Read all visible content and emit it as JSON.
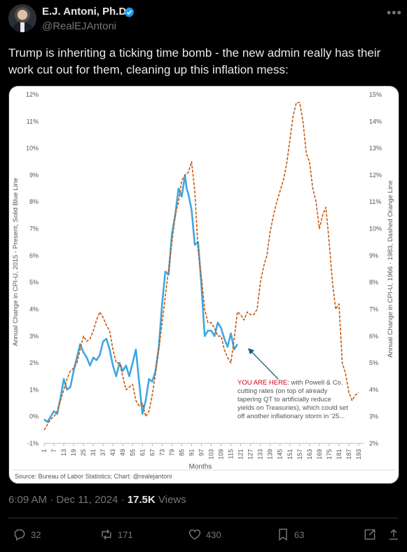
{
  "author": {
    "name": "E.J. Antoni, Ph.D.",
    "handle": "@RealEJAntoni"
  },
  "tweet": {
    "text": "Trump is inheriting a ticking time bomb - the new admin really has their work cut out for them, cleaning up this inflation mess:"
  },
  "meta": {
    "time": "6:09 AM · Dec 11, 2024 · ",
    "views_count": "17.5K",
    "views_label": " Views"
  },
  "actions": {
    "replies": "32",
    "reposts": "171",
    "likes": "430",
    "bookmarks": "63"
  },
  "icons": [
    "verified-badge-icon",
    "more-icon",
    "reply-icon",
    "repost-icon",
    "like-icon",
    "bookmark-icon",
    "share-icon"
  ],
  "chart_data": {
    "type": "line",
    "xlabel": "Months",
    "ylabel_left": "Annual Change in CPI-U, 2015 - Present, Solid Blue Line",
    "ylabel_right": "Annual Change in CPI-U, 1966 - 1983, Dashed Orange Line",
    "x_ticks": [
      1,
      7,
      13,
      19,
      25,
      31,
      37,
      43,
      49,
      55,
      61,
      67,
      73,
      79,
      85,
      91,
      97,
      103,
      109,
      115,
      121,
      127,
      133,
      139,
      145,
      151,
      157,
      163,
      169,
      175,
      181,
      187,
      193
    ],
    "xlim": [
      1,
      196
    ],
    "y_left_ticks": [
      "-1%",
      "0%",
      "1%",
      "2%",
      "3%",
      "4%",
      "5%",
      "6%",
      "7%",
      "8%",
      "9%",
      "10%",
      "11%",
      "12%"
    ],
    "y_left_range": [
      -1,
      12
    ],
    "y_right_ticks": [
      "2%",
      "3%",
      "4%",
      "5%",
      "6%",
      "7%",
      "8%",
      "9%",
      "10%",
      "11%",
      "12%",
      "13%",
      "14%",
      "15%"
    ],
    "y_right_range": [
      2,
      15
    ],
    "annotation_highlight": "YOU ARE HERE:",
    "annotation_lines": [
      " with Powell & Co.",
      "cutting rates (on top of already",
      "tapering QT to artificially reduce",
      "yields on Treasuries), which could set",
      "off another inflationary storm in '25..."
    ],
    "source": "Source: Bureau of Labor Statistics; Chart: @realejantoni",
    "colors": {
      "blue": "#3fa7e0",
      "orange": "#c55a11"
    },
    "series": [
      {
        "axis": "left",
        "style": "solid",
        "x": [
          1,
          3,
          5,
          7,
          9,
          11,
          13,
          15,
          17,
          19,
          21,
          23,
          25,
          27,
          29,
          31,
          33,
          35,
          37,
          39,
          41,
          43,
          45,
          47,
          49,
          51,
          53,
          55,
          57,
          59,
          61,
          63,
          65,
          67,
          69,
          71,
          73,
          75,
          77,
          79,
          81,
          83,
          85,
          87,
          88,
          89,
          91,
          93,
          95,
          97,
          99,
          101,
          103,
          105,
          107,
          109,
          111,
          113,
          115,
          117,
          119
        ],
        "y": [
          -0.1,
          -0.2,
          0.0,
          0.2,
          0.1,
          0.7,
          1.4,
          1.0,
          1.1,
          1.7,
          2.2,
          2.7,
          2.4,
          2.2,
          1.9,
          2.2,
          2.1,
          2.3,
          2.8,
          2.9,
          2.5,
          1.9,
          1.5,
          2.0,
          1.7,
          1.9,
          1.5,
          2.0,
          2.5,
          1.3,
          0.1,
          0.6,
          1.4,
          1.3,
          1.7,
          2.6,
          4.2,
          5.4,
          5.3,
          6.8,
          7.5,
          8.5,
          8.2,
          9.0,
          8.5,
          8.3,
          7.7,
          6.4,
          6.5,
          4.9,
          3.0,
          3.2,
          3.2,
          3.0,
          3.5,
          3.3,
          2.9,
          2.6,
          3.1,
          2.5,
          2.7
        ]
      },
      {
        "axis": "right",
        "style": "dashed",
        "x": [
          1,
          3,
          5,
          7,
          9,
          11,
          13,
          15,
          17,
          19,
          21,
          23,
          25,
          27,
          29,
          31,
          33,
          35,
          37,
          39,
          41,
          43,
          45,
          47,
          49,
          51,
          53,
          55,
          57,
          59,
          61,
          63,
          65,
          67,
          69,
          71,
          73,
          75,
          77,
          79,
          81,
          83,
          85,
          87,
          89,
          91,
          93,
          95,
          97,
          99,
          101,
          103,
          105,
          107,
          109,
          111,
          113,
          115,
          117,
          119,
          121,
          123,
          125,
          127,
          129,
          131,
          133,
          135,
          137,
          139,
          141,
          143,
          145,
          147,
          149,
          151,
          153,
          155,
          157,
          159,
          161,
          163,
          165,
          167,
          169,
          171,
          173,
          175,
          177,
          179,
          181,
          183,
          185,
          187,
          189,
          191,
          193
        ],
        "y": [
          2.5,
          2.7,
          2.9,
          3.0,
          3.2,
          3.6,
          4.0,
          4.4,
          4.7,
          4.8,
          5.0,
          5.5,
          6.0,
          5.8,
          5.9,
          6.2,
          6.6,
          6.9,
          6.7,
          6.4,
          6.2,
          5.5,
          5.0,
          5.0,
          4.5,
          4.0,
          4.1,
          4.2,
          3.6,
          3.4,
          3.5,
          3.0,
          3.2,
          3.8,
          4.6,
          5.5,
          6.5,
          7.5,
          8.5,
          9.5,
          10.5,
          11.0,
          11.8,
          12.0,
          12.1,
          12.5,
          11.4,
          9.2,
          8.2,
          7.0,
          6.5,
          6.5,
          6.3,
          6.0,
          6.0,
          5.5,
          5.2,
          5.0,
          5.9,
          6.9,
          6.8,
          6.6,
          6.9,
          6.8,
          6.8,
          7.0,
          8.0,
          8.6,
          9.0,
          9.9,
          10.5,
          11.0,
          11.4,
          11.8,
          12.4,
          13.3,
          14.2,
          14.7,
          14.7,
          14.0,
          12.8,
          12.5,
          11.5,
          11.0,
          10.0,
          10.5,
          10.8,
          9.5,
          8.0,
          7.0,
          7.2,
          5.0,
          4.6,
          3.9,
          3.6,
          3.8,
          3.9
        ]
      }
    ]
  }
}
